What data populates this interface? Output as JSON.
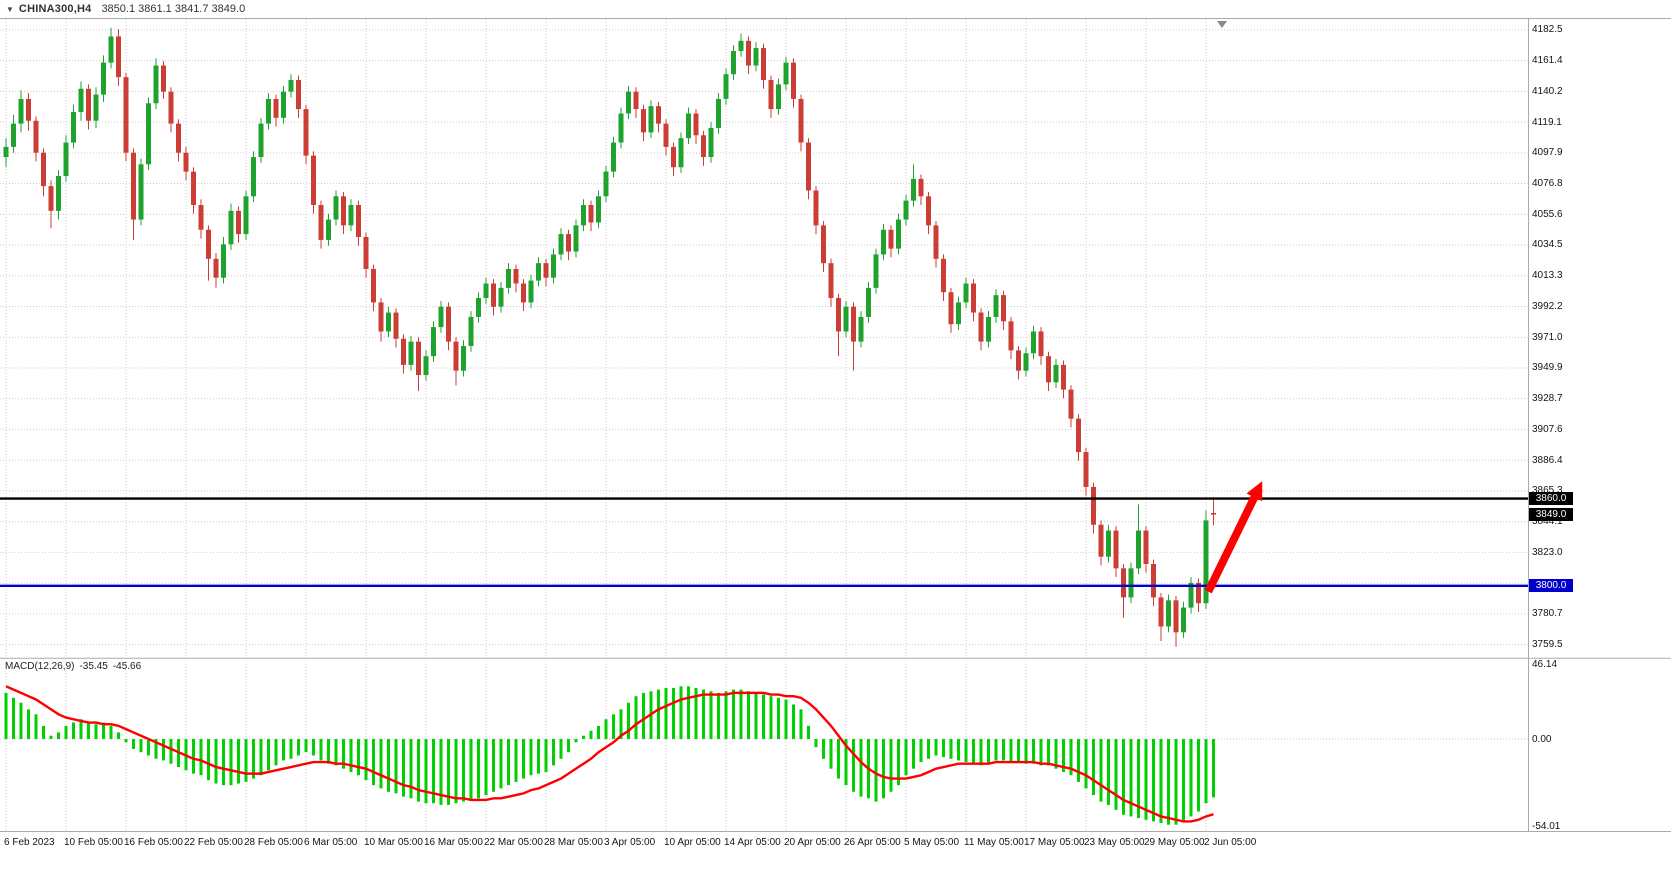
{
  "title_bar": {
    "expander_icon": "▼",
    "symbol_period": "CHINA300,H4",
    "ohlc_summary": "3850.1 3861.1 3841.7 3849.0"
  },
  "price_axis": {
    "labels": [
      "4182.5",
      "4161.4",
      "4140.2",
      "4119.1",
      "4097.9",
      "4076.8",
      "4055.6",
      "4034.5",
      "4013.3",
      "3992.2",
      "3971.0",
      "3949.9",
      "3928.7",
      "3907.6",
      "3886.4",
      "3865.3",
      "3844.1",
      "3823.0",
      "3801.8",
      "3780.7",
      "3759.5"
    ]
  },
  "time_axis": {
    "labels": [
      "6 Feb 2023",
      "10 Feb 05:00",
      "16 Feb 05:00",
      "22 Feb 05:00",
      "28 Feb 05:00",
      "6 Mar 05:00",
      "10 Mar 05:00",
      "16 Mar 05:00",
      "22 Mar 05:00",
      "28 Mar 05:00",
      "3 Apr 05:00",
      "10 Apr 05:00",
      "14 Apr 05:00",
      "20 Apr 05:00",
      "26 Apr 05:00",
      "5 May 05:00",
      "11 May 05:00",
      "17 May 05:00",
      "23 May 05:00",
      "29 May 05:00",
      "2 Jun 05:00"
    ]
  },
  "macd_panel": {
    "name": "MACD(12,26,9)",
    "main_value": "-35.45",
    "signal_value": "-45.66",
    "axis_labels": [
      "46.14",
      "0.00",
      "-54.01"
    ]
  },
  "colors": {
    "bull": "#1fa32e",
    "bear": "#cc3d35",
    "grid": "#cdcdcd",
    "macd_hist": "#00cf00",
    "macd_signal": "#ff0000",
    "arrow": "#ff0000",
    "divider": "#ababab",
    "badge_black": "#000000",
    "badge_blue": "#0000cd"
  },
  "chart_data": {
    "type": "candlestick+macd",
    "symbol": "CHINA300",
    "timeframe": "H4",
    "candles_per_x_label": 8,
    "price_axis_range": {
      "min": 3751,
      "max": 4190
    },
    "current_price": 3849.0,
    "current_price_label": "3849.0",
    "horizontal_lines": [
      {
        "price": 3860.0,
        "label": "3860.0",
        "color": "#000000",
        "role": "resistance"
      },
      {
        "price": 3800.0,
        "label": "3800.0",
        "color": "#0000cd",
        "role": "support"
      }
    ],
    "arrow_annotation": {
      "from_candle": 160.3,
      "from_price": 3796,
      "to_candle": 167.5,
      "to_price": 3872,
      "color": "#ff0000"
    },
    "candles": [
      [
        4095,
        4108,
        4088,
        4102
      ],
      [
        4102,
        4124,
        4098,
        4118
      ],
      [
        4118,
        4141,
        4112,
        4135
      ],
      [
        4135,
        4139,
        4113,
        4120
      ],
      [
        4120,
        4123,
        4092,
        4098
      ],
      [
        4098,
        4101,
        4068,
        4075
      ],
      [
        4075,
        4079,
        4046,
        4058
      ],
      [
        4058,
        4086,
        4052,
        4082
      ],
      [
        4082,
        4110,
        4078,
        4105
      ],
      [
        4105,
        4131,
        4101,
        4126
      ],
      [
        4126,
        4147,
        4120,
        4142
      ],
      [
        4142,
        4145,
        4114,
        4120
      ],
      [
        4120,
        4143,
        4115,
        4138
      ],
      [
        4138,
        4165,
        4133,
        4160
      ],
      [
        4160,
        4184,
        4156,
        4178
      ],
      [
        4178,
        4183,
        4144,
        4150
      ],
      [
        4150,
        4153,
        4092,
        4098
      ],
      [
        4098,
        4101,
        4038,
        4052
      ],
      [
        4052,
        4094,
        4048,
        4090
      ],
      [
        4090,
        4136,
        4086,
        4132
      ],
      [
        4132,
        4163,
        4128,
        4158
      ],
      [
        4158,
        4161,
        4135,
        4140
      ],
      [
        4140,
        4143,
        4112,
        4118
      ],
      [
        4118,
        4121,
        4092,
        4098
      ],
      [
        4098,
        4102,
        4079,
        4085
      ],
      [
        4085,
        4088,
        4056,
        4062
      ],
      [
        4062,
        4066,
        4039,
        4045
      ],
      [
        4045,
        4048,
        4010,
        4025
      ],
      [
        4025,
        4029,
        4005,
        4012
      ],
      [
        4012,
        4040,
        4008,
        4035
      ],
      [
        4035,
        4063,
        4031,
        4058
      ],
      [
        4058,
        4061,
        4036,
        4042
      ],
      [
        4042,
        4072,
        4038,
        4068
      ],
      [
        4068,
        4099,
        4064,
        4095
      ],
      [
        4095,
        4122,
        4091,
        4118
      ],
      [
        4118,
        4139,
        4114,
        4135
      ],
      [
        4135,
        4138,
        4116,
        4122
      ],
      [
        4122,
        4144,
        4118,
        4140
      ],
      [
        4140,
        4152,
        4136,
        4148
      ],
      [
        4148,
        4151,
        4122,
        4128
      ],
      [
        4128,
        4131,
        4090,
        4096
      ],
      [
        4096,
        4099,
        4056,
        4062
      ],
      [
        4062,
        4065,
        4032,
        4038
      ],
      [
        4038,
        4056,
        4034,
        4052
      ],
      [
        4052,
        4072,
        4048,
        4068
      ],
      [
        4068,
        4071,
        4042,
        4048
      ],
      [
        4048,
        4066,
        4044,
        4062
      ],
      [
        4062,
        4065,
        4034,
        4040
      ],
      [
        4040,
        4043,
        4012,
        4018
      ],
      [
        4018,
        4021,
        3989,
        3995
      ],
      [
        3995,
        3998,
        3968,
        3975
      ],
      [
        3975,
        3992,
        3971,
        3988
      ],
      [
        3988,
        3991,
        3964,
        3970
      ],
      [
        3970,
        3973,
        3946,
        3952
      ],
      [
        3952,
        3972,
        3948,
        3968
      ],
      [
        3968,
        3971,
        3934,
        3945
      ],
      [
        3945,
        3962,
        3941,
        3958
      ],
      [
        3958,
        3982,
        3954,
        3978
      ],
      [
        3978,
        3996,
        3974,
        3992
      ],
      [
        3992,
        3995,
        3962,
        3968
      ],
      [
        3968,
        3971,
        3938,
        3948
      ],
      [
        3948,
        3969,
        3944,
        3965
      ],
      [
        3965,
        3989,
        3961,
        3985
      ],
      [
        3985,
        4002,
        3981,
        3998
      ],
      [
        3998,
        4012,
        3994,
        4008
      ],
      [
        4008,
        4011,
        3986,
        3992
      ],
      [
        3992,
        4009,
        3988,
        4005
      ],
      [
        4005,
        4022,
        4001,
        4018
      ],
      [
        4018,
        4021,
        4002,
        4008
      ],
      [
        4008,
        4011,
        3989,
        3995
      ],
      [
        3995,
        4014,
        3991,
        4010
      ],
      [
        4010,
        4026,
        4006,
        4022
      ],
      [
        4022,
        4025,
        4006,
        4012
      ],
      [
        4012,
        4032,
        4008,
        4028
      ],
      [
        4028,
        4046,
        4024,
        4042
      ],
      [
        4042,
        4045,
        4024,
        4030
      ],
      [
        4030,
        4052,
        4026,
        4048
      ],
      [
        4048,
        4066,
        4044,
        4062
      ],
      [
        4062,
        4065,
        4044,
        4050
      ],
      [
        4050,
        4072,
        4046,
        4068
      ],
      [
        4068,
        4089,
        4064,
        4085
      ],
      [
        4085,
        4109,
        4081,
        4105
      ],
      [
        4105,
        4129,
        4101,
        4125
      ],
      [
        4125,
        4144,
        4121,
        4140
      ],
      [
        4140,
        4143,
        4122,
        4128
      ],
      [
        4128,
        4131,
        4106,
        4112
      ],
      [
        4112,
        4134,
        4108,
        4130
      ],
      [
        4130,
        4133,
        4112,
        4118
      ],
      [
        4118,
        4121,
        4096,
        4102
      ],
      [
        4102,
        4105,
        4082,
        4088
      ],
      [
        4088,
        4112,
        4084,
        4108
      ],
      [
        4108,
        4129,
        4104,
        4125
      ],
      [
        4125,
        4128,
        4104,
        4110
      ],
      [
        4110,
        4113,
        4089,
        4095
      ],
      [
        4095,
        4119,
        4091,
        4115
      ],
      [
        4115,
        4139,
        4111,
        4135
      ],
      [
        4135,
        4156,
        4131,
        4152
      ],
      [
        4152,
        4172,
        4148,
        4168
      ],
      [
        4168,
        4180,
        4164,
        4175
      ],
      [
        4175,
        4178,
        4152,
        4158
      ],
      [
        4158,
        4174,
        4154,
        4170
      ],
      [
        4170,
        4173,
        4142,
        4148
      ],
      [
        4148,
        4151,
        4122,
        4128
      ],
      [
        4128,
        4149,
        4124,
        4145
      ],
      [
        4145,
        4164,
        4141,
        4160
      ],
      [
        4160,
        4163,
        4129,
        4135
      ],
      [
        4135,
        4138,
        4099,
        4105
      ],
      [
        4105,
        4108,
        4066,
        4072
      ],
      [
        4072,
        4075,
        4042,
        4048
      ],
      [
        4048,
        4051,
        4016,
        4022
      ],
      [
        4022,
        4025,
        3992,
        3998
      ],
      [
        3998,
        4001,
        3958,
        3975
      ],
      [
        3975,
        3996,
        3971,
        3992
      ],
      [
        3992,
        3995,
        3948,
        3968
      ],
      [
        3968,
        3989,
        3964,
        3985
      ],
      [
        3985,
        4009,
        3981,
        4005
      ],
      [
        4005,
        4032,
        4001,
        4028
      ],
      [
        4028,
        4049,
        4024,
        4045
      ],
      [
        4045,
        4048,
        4026,
        4032
      ],
      [
        4032,
        4056,
        4028,
        4052
      ],
      [
        4052,
        4069,
        4048,
        4065
      ],
      [
        4065,
        4090,
        4061,
        4080
      ],
      [
        4080,
        4083,
        4062,
        4068
      ],
      [
        4068,
        4071,
        4042,
        4048
      ],
      [
        4048,
        4051,
        4019,
        4025
      ],
      [
        4025,
        4028,
        3996,
        4002
      ],
      [
        4002,
        4005,
        3974,
        3980
      ],
      [
        3980,
        3999,
        3976,
        3995
      ],
      [
        3995,
        4012,
        3991,
        4008
      ],
      [
        4008,
        4011,
        3982,
        3988
      ],
      [
        3988,
        3991,
        3962,
        3968
      ],
      [
        3968,
        3989,
        3964,
        3985
      ],
      [
        3985,
        4004,
        3981,
        4000
      ],
      [
        4000,
        4003,
        3976,
        3982
      ],
      [
        3982,
        3985,
        3956,
        3962
      ],
      [
        3962,
        3965,
        3942,
        3948
      ],
      [
        3948,
        3964,
        3944,
        3960
      ],
      [
        3960,
        3979,
        3956,
        3975
      ],
      [
        3975,
        3978,
        3952,
        3958
      ],
      [
        3958,
        3961,
        3934,
        3940
      ],
      [
        3940,
        3956,
        3936,
        3952
      ],
      [
        3952,
        3955,
        3929,
        3935
      ],
      [
        3935,
        3938,
        3909,
        3915
      ],
      [
        3915,
        3918,
        3886,
        3892
      ],
      [
        3892,
        3895,
        3862,
        3868
      ],
      [
        3868,
        3871,
        3836,
        3842
      ],
      [
        3842,
        3845,
        3814,
        3820
      ],
      [
        3820,
        3842,
        3816,
        3838
      ],
      [
        3838,
        3841,
        3806,
        3812
      ],
      [
        3812,
        3815,
        3778,
        3792
      ],
      [
        3792,
        3816,
        3788,
        3812
      ],
      [
        3812,
        3856,
        3808,
        3838
      ],
      [
        3838,
        3841,
        3809,
        3815
      ],
      [
        3815,
        3818,
        3786,
        3792
      ],
      [
        3792,
        3795,
        3762,
        3772
      ],
      [
        3772,
        3794,
        3768,
        3790
      ],
      [
        3790,
        3793,
        3758,
        3768
      ],
      [
        3768,
        3789,
        3764,
        3785
      ],
      [
        3785,
        3806,
        3781,
        3802
      ],
      [
        3802,
        3805,
        3782,
        3788
      ],
      [
        3788,
        3852,
        3784,
        3845
      ],
      [
        3850.1,
        3861.1,
        3841.7,
        3849.0
      ]
    ],
    "macd": {
      "range": {
        "min": -54.01,
        "max": 46.14
      },
      "histogram": [
        28,
        25,
        22,
        18,
        15,
        8,
        2,
        4,
        8,
        10,
        12,
        10,
        9,
        10,
        8,
        4,
        -2,
        -6,
        -8,
        -10,
        -12,
        -13,
        -15,
        -17,
        -19,
        -21,
        -22,
        -25,
        -27,
        -28,
        -28,
        -27,
        -26,
        -24,
        -22,
        -19,
        -16,
        -13,
        -12,
        -10,
        -8,
        -10,
        -13,
        -15,
        -16,
        -18,
        -20,
        -22,
        -25,
        -28,
        -30,
        -32,
        -33,
        -35,
        -36,
        -38,
        -39,
        -39,
        -40,
        -40,
        -39,
        -38,
        -37,
        -36,
        -34,
        -32,
        -30,
        -28,
        -26,
        -24,
        -22,
        -21,
        -20,
        -16,
        -12,
        -8,
        -2,
        2,
        5,
        8,
        12,
        15,
        18,
        22,
        26,
        28,
        29,
        30,
        31,
        31,
        32,
        32,
        31,
        30,
        29,
        28,
        29,
        30,
        30,
        29,
        28,
        27,
        26,
        25,
        24,
        21,
        18,
        8,
        -5,
        -12,
        -18,
        -24,
        -28,
        -32,
        -35,
        -36,
        -38,
        -36,
        -32,
        -28,
        -22,
        -18,
        -14,
        -12,
        -10,
        -11,
        -12,
        -13,
        -14,
        -15,
        -16,
        -15,
        -13,
        -13,
        -14,
        -14,
        -15,
        -15,
        -16,
        -16,
        -18,
        -20,
        -22,
        -26,
        -30,
        -34,
        -38,
        -40,
        -43,
        -46,
        -47,
        -48,
        -49,
        -50,
        -51,
        -52,
        -52,
        -50,
        -47,
        -44,
        -39,
        -35.45
      ],
      "signal": [
        32,
        30,
        28,
        26,
        24,
        21,
        18,
        15,
        13,
        12,
        11,
        10,
        10,
        9,
        9,
        8,
        6,
        4,
        2,
        0,
        -2,
        -4,
        -6,
        -8,
        -10,
        -12,
        -13,
        -15,
        -17,
        -18,
        -19,
        -20,
        -21,
        -21,
        -21,
        -20,
        -19,
        -18,
        -17,
        -16,
        -15,
        -14,
        -14,
        -14,
        -15,
        -15,
        -16,
        -17,
        -18,
        -20,
        -22,
        -24,
        -26,
        -28,
        -29,
        -31,
        -32,
        -33,
        -34,
        -35,
        -36,
        -36,
        -37,
        -37,
        -37,
        -36,
        -36,
        -35,
        -34,
        -33,
        -31,
        -30,
        -28,
        -26,
        -24,
        -21,
        -18,
        -15,
        -12,
        -8,
        -5,
        -2,
        2,
        5,
        9,
        12,
        15,
        18,
        20,
        22,
        24,
        25,
        26,
        27,
        27,
        27,
        27,
        28,
        28,
        28,
        28,
        28,
        27,
        27,
        26,
        26,
        25,
        22,
        18,
        13,
        8,
        2,
        -4,
        -9,
        -14,
        -18,
        -21,
        -23,
        -24,
        -24,
        -24,
        -23,
        -22,
        -20,
        -18,
        -17,
        -16,
        -15,
        -15,
        -15,
        -15,
        -15,
        -14,
        -14,
        -14,
        -14,
        -14,
        -14,
        -15,
        -15,
        -16,
        -17,
        -18,
        -20,
        -22,
        -25,
        -28,
        -31,
        -34,
        -37,
        -39,
        -41,
        -43,
        -45,
        -47,
        -48,
        -49,
        -50,
        -50,
        -49,
        -47,
        -45.66
      ]
    }
  }
}
